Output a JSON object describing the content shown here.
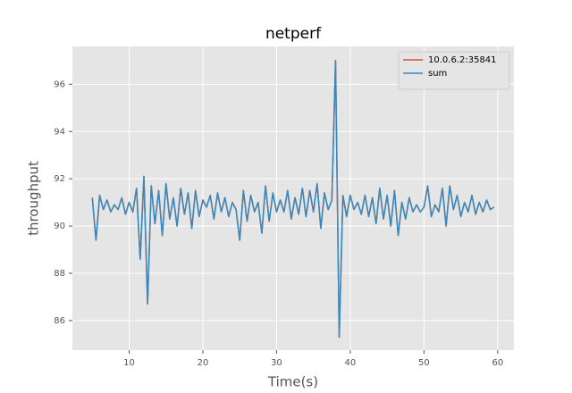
{
  "chart_data": {
    "type": "line",
    "title": "netperf",
    "xlabel": "Time(s)",
    "ylabel": "throughput",
    "x": [
      5,
      5.5,
      6,
      6.5,
      7,
      7.5,
      8,
      8.5,
      9,
      9.5,
      10,
      10.5,
      11,
      11.5,
      12,
      12.5,
      13,
      13.5,
      14,
      14.5,
      15,
      15.5,
      16,
      16.5,
      17,
      17.5,
      18,
      18.5,
      19,
      19.5,
      20,
      20.5,
      21,
      21.5,
      22,
      22.5,
      23,
      23.5,
      24,
      24.5,
      25,
      25.5,
      26,
      26.5,
      27,
      27.5,
      28,
      28.5,
      29,
      29.5,
      30,
      30.5,
      31,
      31.5,
      32,
      32.5,
      33,
      33.5,
      34,
      34.5,
      35,
      35.5,
      36,
      36.5,
      37,
      37.5,
      38,
      38.5,
      39,
      39.5,
      40,
      40.5,
      41,
      41.5,
      42,
      42.5,
      43,
      43.5,
      44,
      44.5,
      45,
      45.5,
      46,
      46.5,
      47,
      47.5,
      48,
      48.5,
      49,
      49.5,
      50,
      50.5,
      51,
      51.5,
      52,
      52.5,
      53,
      53.5,
      54,
      54.5,
      55,
      55.5,
      56,
      56.5,
      57,
      57.5,
      58,
      58.5,
      59,
      59.5
    ],
    "series": [
      {
        "name": "10.0.6.2:35841",
        "color": "#E24A33",
        "values": [
          91.2,
          89.4,
          91.3,
          90.7,
          91.1,
          90.6,
          90.9,
          90.7,
          91.2,
          90.5,
          91.0,
          90.6,
          91.6,
          88.6,
          92.1,
          86.7,
          91.7,
          90.1,
          91.5,
          89.6,
          91.8,
          90.3,
          91.2,
          90.0,
          91.6,
          90.5,
          91.4,
          89.9,
          91.5,
          90.4,
          91.1,
          90.8,
          91.3,
          90.3,
          91.4,
          90.6,
          91.2,
          90.4,
          91.0,
          90.7,
          89.4,
          91.5,
          90.2,
          91.3,
          90.6,
          91.0,
          89.7,
          91.7,
          90.2,
          91.4,
          90.6,
          91.1,
          90.6,
          91.5,
          90.3,
          91.2,
          90.5,
          91.6,
          90.4,
          91.5,
          90.6,
          91.8,
          89.9,
          91.4,
          90.7,
          91.1,
          97.0,
          85.3,
          91.3,
          90.4,
          91.3,
          90.7,
          91.0,
          90.5,
          91.3,
          90.4,
          91.2,
          90.1,
          91.6,
          90.3,
          91.3,
          90.0,
          91.5,
          89.6,
          91.0,
          90.3,
          91.2,
          90.6,
          90.9,
          90.6,
          90.8,
          91.7,
          90.4,
          90.9,
          90.6,
          91.6,
          90.0,
          91.7,
          90.7,
          91.3,
          90.4,
          91.0,
          90.6,
          91.3,
          90.5,
          91.0,
          90.6,
          91.1,
          90.7,
          90.8
        ]
      },
      {
        "name": "sum",
        "color": "#348ABD",
        "values": [
          91.2,
          89.4,
          91.3,
          90.7,
          91.1,
          90.6,
          90.9,
          90.7,
          91.2,
          90.5,
          91.0,
          90.6,
          91.6,
          88.6,
          92.1,
          86.7,
          91.7,
          90.1,
          91.5,
          89.6,
          91.8,
          90.3,
          91.2,
          90.0,
          91.6,
          90.5,
          91.4,
          89.9,
          91.5,
          90.4,
          91.1,
          90.8,
          91.3,
          90.3,
          91.4,
          90.6,
          91.2,
          90.4,
          91.0,
          90.7,
          89.4,
          91.5,
          90.2,
          91.3,
          90.6,
          91.0,
          89.7,
          91.7,
          90.2,
          91.4,
          90.6,
          91.1,
          90.6,
          91.5,
          90.3,
          91.2,
          90.5,
          91.6,
          90.4,
          91.5,
          90.6,
          91.8,
          89.9,
          91.4,
          90.7,
          91.1,
          97.0,
          85.3,
          91.3,
          90.4,
          91.3,
          90.7,
          91.0,
          90.5,
          91.3,
          90.4,
          91.2,
          90.1,
          91.6,
          90.3,
          91.3,
          90.0,
          91.5,
          89.6,
          91.0,
          90.3,
          91.2,
          90.6,
          90.9,
          90.6,
          90.8,
          91.7,
          90.4,
          90.9,
          90.6,
          91.6,
          90.0,
          91.7,
          90.7,
          91.3,
          90.4,
          91.0,
          90.6,
          91.3,
          90.5,
          91.0,
          90.6,
          91.1,
          90.7,
          90.8
        ]
      }
    ],
    "xlim": [
      2.3,
      62.2
    ],
    "xticks": [
      10,
      20,
      30,
      40,
      50,
      60
    ],
    "ylim": [
      84.75,
      97.6
    ],
    "yticks": [
      86,
      88,
      90,
      92,
      94,
      96
    ],
    "grid": true,
    "legend": "upper right"
  }
}
